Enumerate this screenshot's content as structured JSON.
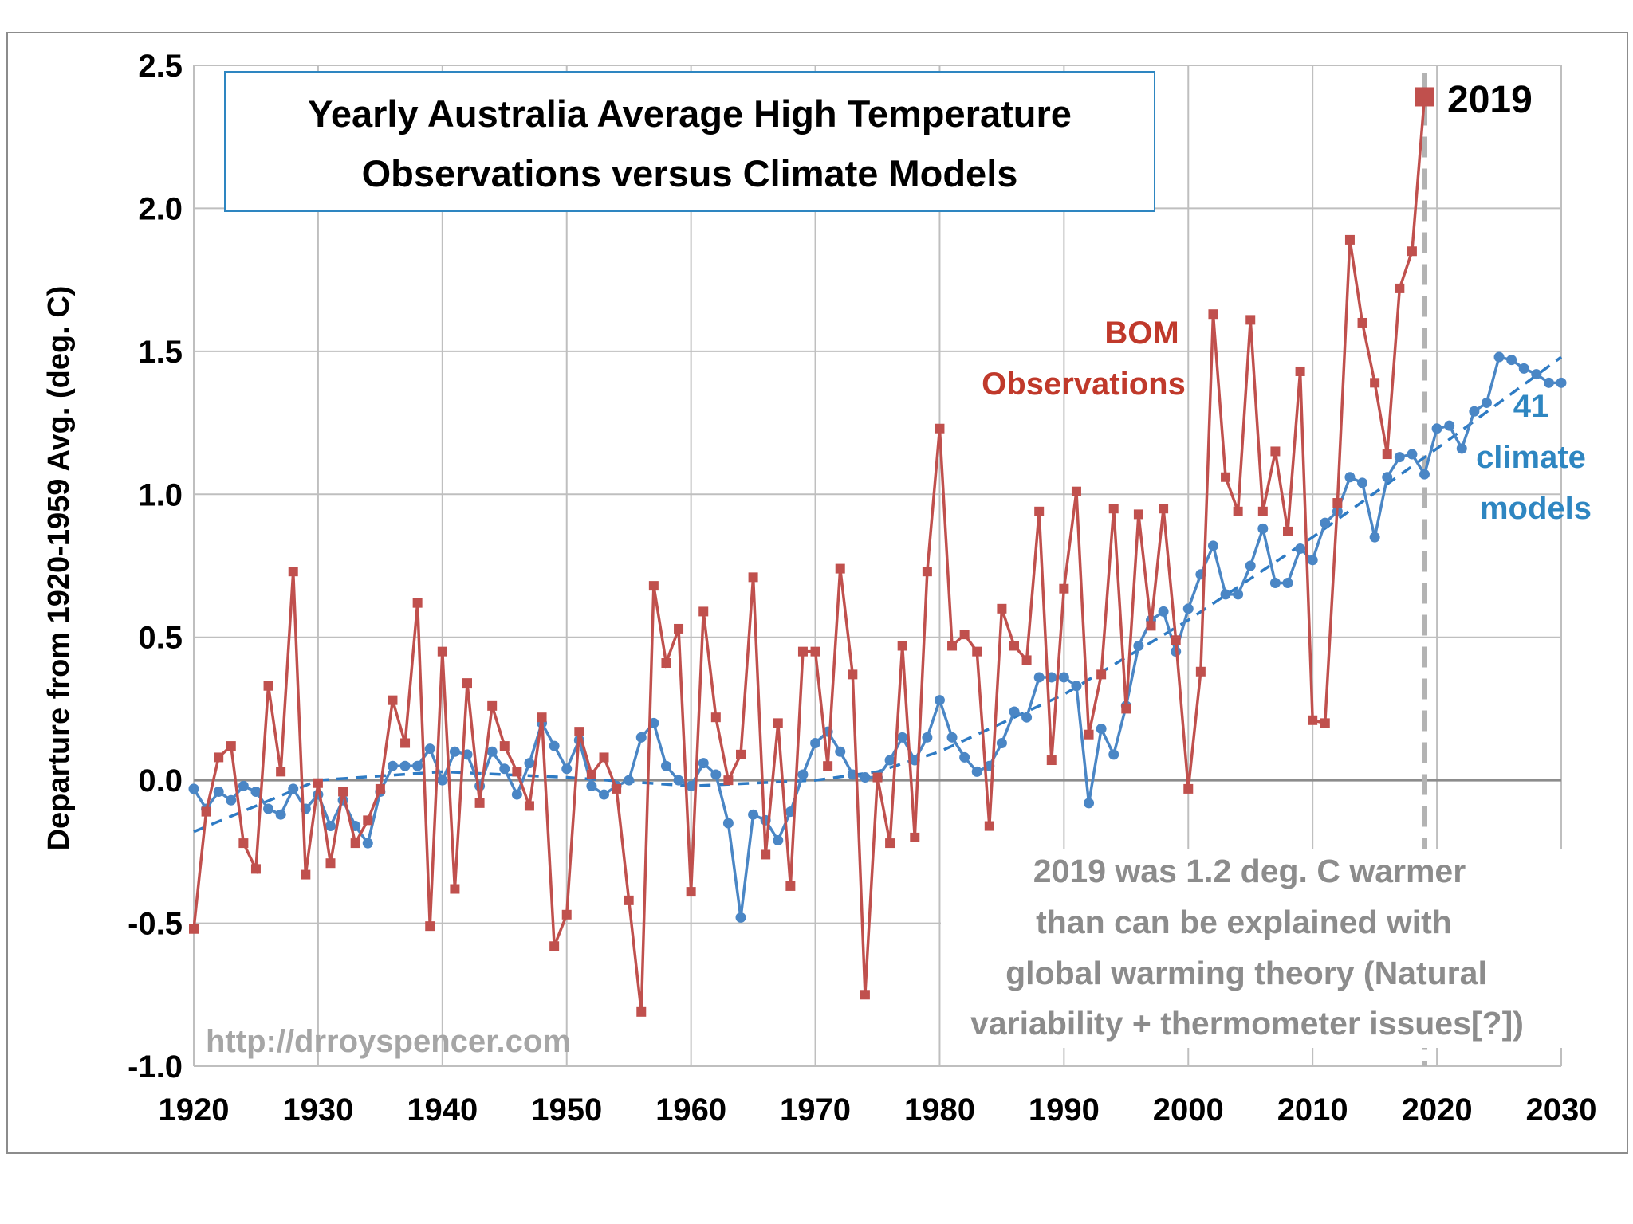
{
  "colors": {
    "observations": "#c0504d",
    "models": "#4a86c5",
    "trend": "#2e7bc4",
    "grid": "#bfbfbf",
    "highlight_line": "#b3b3b3",
    "note_text": "#8c8c8c",
    "title_border": "#2e86c1"
  },
  "chart_data": {
    "type": "line",
    "title": "Yearly Australia Average High Temperature",
    "subtitle": "Observations versus Climate Models",
    "xlabel": "",
    "ylabel": "Departure from 1920-1959 Avg. (deg. C)",
    "xlim": [
      1920,
      2030
    ],
    "ylim": [
      -1.0,
      2.5
    ],
    "xticks": [
      1920,
      1930,
      1940,
      1950,
      1960,
      1970,
      1980,
      1990,
      2000,
      2010,
      2020,
      2030
    ],
    "yticks": [
      -1.0,
      -0.5,
      0.0,
      0.5,
      1.0,
      1.5,
      2.0,
      2.5
    ],
    "ytick_labels": [
      "-1.0",
      "-0.5",
      "0.0",
      "0.5",
      "1.0",
      "1.5",
      "2.0",
      "2.5"
    ],
    "grid": true,
    "series": [
      {
        "name": "BOM Observations",
        "marker": "square",
        "x_start": 1920,
        "values": [
          -0.52,
          -0.11,
          0.08,
          0.12,
          -0.22,
          -0.31,
          0.33,
          0.03,
          0.73,
          -0.33,
          -0.01,
          -0.29,
          -0.04,
          -0.22,
          -0.14,
          -0.03,
          0.28,
          0.13,
          0.62,
          -0.51,
          0.45,
          -0.38,
          0.34,
          -0.08,
          0.26,
          0.12,
          0.03,
          -0.09,
          0.22,
          -0.58,
          -0.47,
          0.17,
          0.02,
          0.08,
          -0.03,
          -0.42,
          -0.81,
          0.68,
          0.41,
          0.53,
          -0.39,
          0.59,
          0.22,
          0.0,
          0.09,
          0.71,
          -0.26,
          0.2,
          -0.37,
          0.45,
          0.45,
          0.05,
          0.74,
          0.37,
          -0.75,
          0.01,
          -0.22,
          0.47,
          -0.2,
          0.73,
          1.23,
          0.47,
          0.51,
          0.45,
          -0.16,
          0.6,
          0.47,
          0.42,
          0.94,
          0.07,
          0.67,
          1.01,
          0.16,
          0.37,
          0.95,
          0.25,
          0.93,
          0.54,
          0.95,
          0.49,
          -0.03,
          0.38,
          1.63,
          1.06,
          0.94,
          1.61,
          0.94,
          1.15,
          0.87,
          1.43,
          0.21,
          0.2,
          0.97,
          1.89,
          1.6,
          1.39,
          1.14,
          1.72,
          1.85,
          2.39
        ]
      },
      {
        "name": "41 climate models",
        "marker": "circle",
        "x_start": 1920,
        "values": [
          -0.03,
          -0.1,
          -0.04,
          -0.07,
          -0.02,
          -0.04,
          -0.1,
          -0.12,
          -0.03,
          -0.1,
          -0.05,
          -0.16,
          -0.07,
          -0.16,
          -0.22,
          -0.04,
          0.05,
          0.05,
          0.05,
          0.11,
          0.0,
          0.1,
          0.09,
          -0.02,
          0.1,
          0.04,
          -0.05,
          0.06,
          0.2,
          0.12,
          0.04,
          0.14,
          -0.02,
          -0.05,
          -0.02,
          0.0,
          0.15,
          0.2,
          0.05,
          0.0,
          -0.02,
          0.06,
          0.02,
          -0.15,
          -0.48,
          -0.12,
          -0.14,
          -0.21,
          -0.11,
          0.02,
          0.13,
          0.17,
          0.1,
          0.02,
          0.01,
          0.01,
          0.07,
          0.15,
          0.07,
          0.15,
          0.28,
          0.15,
          0.08,
          0.03,
          0.05,
          0.13,
          0.24,
          0.22,
          0.36,
          0.36,
          0.36,
          0.33,
          -0.08,
          0.18,
          0.09,
          0.26,
          0.47,
          0.56,
          0.59,
          0.45,
          0.6,
          0.72,
          0.82,
          0.65,
          0.65,
          0.75,
          0.88,
          0.69,
          0.69,
          0.81,
          0.77,
          0.9,
          0.94,
          1.06,
          1.04,
          0.85,
          1.06,
          1.13,
          1.14,
          1.07,
          1.23,
          1.24,
          1.16,
          1.29,
          1.32,
          1.48,
          1.47,
          1.44,
          1.42,
          1.39,
          1.39
        ]
      }
    ],
    "trend": {
      "style": "dashed",
      "x": [
        1920,
        1930,
        1940,
        1950,
        1960,
        1970,
        1975,
        1980,
        1990,
        2000,
        2010,
        2020,
        2030
      ],
      "values": [
        -0.18,
        0.0,
        0.03,
        0.01,
        -0.02,
        0.0,
        0.03,
        0.1,
        0.3,
        0.56,
        0.85,
        1.16,
        1.48
      ]
    },
    "highlight_year": 2019,
    "annotations": {
      "highlight_label": "2019",
      "observations_label_1": "BOM",
      "observations_label_2": "Observations",
      "models_label_1": "41",
      "models_label_2": "climate",
      "models_label_3": "models",
      "note_1": "2019 was 1.2 deg. C warmer",
      "note_2": "than can be explained with",
      "note_3": "global warming theory (Natural",
      "note_4": "variability + thermometer issues[?])"
    }
  },
  "credit": "http://drroyspencer.com"
}
